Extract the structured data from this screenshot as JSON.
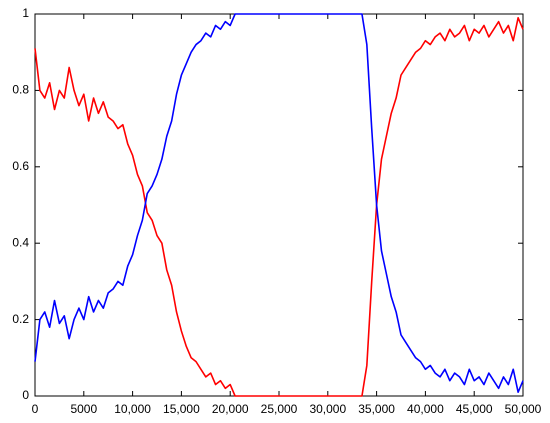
{
  "chart_data": {
    "type": "line",
    "x": [
      0,
      500,
      1000,
      1500,
      2000,
      2500,
      3000,
      3500,
      4000,
      4500,
      5000,
      5500,
      6000,
      6500,
      7000,
      7500,
      8000,
      8500,
      9000,
      9500,
      10000,
      10500,
      11000,
      11500,
      12000,
      12500,
      13000,
      13500,
      14000,
      14500,
      15000,
      15500,
      16000,
      16500,
      17000,
      17500,
      18000,
      18500,
      19000,
      19500,
      20000,
      20500,
      21000,
      21500,
      22000,
      22500,
      23000,
      23500,
      24000,
      24500,
      25000,
      25500,
      26000,
      26500,
      27000,
      27500,
      28000,
      28500,
      29000,
      29500,
      30000,
      30500,
      31000,
      31500,
      32000,
      32500,
      33000,
      33500,
      34000,
      34500,
      35000,
      35500,
      36000,
      36500,
      37000,
      37500,
      38000,
      38500,
      39000,
      39500,
      40000,
      40500,
      41000,
      41500,
      42000,
      42500,
      43000,
      43500,
      44000,
      44500,
      45000,
      45500,
      46000,
      46500,
      47000,
      47500,
      48000,
      48500,
      49000,
      49500,
      50000
    ],
    "series": [
      {
        "color": "#ff0000",
        "values": [
          0.91,
          0.8,
          0.78,
          0.82,
          0.75,
          0.8,
          0.78,
          0.86,
          0.8,
          0.76,
          0.79,
          0.72,
          0.78,
          0.74,
          0.77,
          0.73,
          0.72,
          0.7,
          0.71,
          0.66,
          0.63,
          0.58,
          0.55,
          0.48,
          0.46,
          0.42,
          0.4,
          0.33,
          0.29,
          0.22,
          0.17,
          0.13,
          0.1,
          0.09,
          0.07,
          0.05,
          0.06,
          0.03,
          0.04,
          0.02,
          0.03,
          0,
          0,
          0,
          0,
          0,
          0,
          0,
          0,
          0,
          0,
          0,
          0,
          0,
          0,
          0,
          0,
          0,
          0,
          0,
          0,
          0,
          0,
          0,
          0,
          0,
          0,
          0,
          0.08,
          0.3,
          0.5,
          0.62,
          0.68,
          0.74,
          0.78,
          0.84,
          0.86,
          0.88,
          0.9,
          0.91,
          0.93,
          0.92,
          0.94,
          0.95,
          0.93,
          0.96,
          0.94,
          0.95,
          0.97,
          0.93,
          0.96,
          0.95,
          0.97,
          0.94,
          0.96,
          0.98,
          0.95,
          0.97,
          0.93,
          0.99,
          0.96
        ]
      },
      {
        "color": "#0000ff",
        "values": [
          0.09,
          0.2,
          0.22,
          0.18,
          0.25,
          0.19,
          0.21,
          0.15,
          0.2,
          0.23,
          0.2,
          0.26,
          0.22,
          0.25,
          0.23,
          0.27,
          0.28,
          0.3,
          0.29,
          0.34,
          0.37,
          0.42,
          0.46,
          0.53,
          0.55,
          0.58,
          0.62,
          0.68,
          0.72,
          0.79,
          0.84,
          0.87,
          0.9,
          0.92,
          0.93,
          0.95,
          0.94,
          0.97,
          0.96,
          0.98,
          0.97,
          1,
          1,
          1,
          1,
          1,
          1,
          1,
          1,
          1,
          1,
          1,
          1,
          1,
          1,
          1,
          1,
          1,
          1,
          1,
          1,
          1,
          1,
          1,
          1,
          1,
          1,
          1,
          0.92,
          0.7,
          0.5,
          0.38,
          0.32,
          0.26,
          0.22,
          0.16,
          0.14,
          0.12,
          0.1,
          0.09,
          0.07,
          0.08,
          0.06,
          0.05,
          0.07,
          0.04,
          0.06,
          0.05,
          0.03,
          0.07,
          0.04,
          0.05,
          0.03,
          0.06,
          0.04,
          0.02,
          0.05,
          0.03,
          0.07,
          0.01,
          0.04
        ]
      }
    ],
    "xlim": [
      0,
      50000
    ],
    "xticks": [
      0,
      5000,
      {
        "value": 10000,
        "label": "10,000"
      },
      {
        "value": 15000,
        "label": "15,000"
      },
      {
        "value": 20000,
        "label": "20,000"
      },
      {
        "value": 25000,
        "label": "25,000"
      },
      {
        "value": 30000,
        "label": "30,000"
      },
      {
        "value": 35000,
        "label": "35,000"
      },
      {
        "value": 40000,
        "label": "40,000"
      },
      {
        "value": 45000,
        "label": "45,000"
      },
      {
        "value": 50000,
        "label": "50,000"
      }
    ],
    "ylim": [
      0,
      1
    ],
    "yticks": [
      0,
      0.2,
      0.4,
      0.6,
      0.8,
      1
    ],
    "grid": false
  }
}
